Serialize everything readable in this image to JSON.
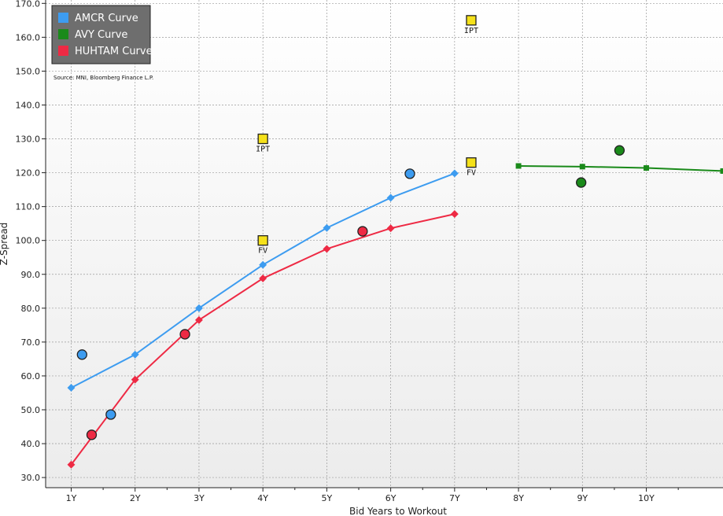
{
  "chart_data": {
    "type": "line",
    "xlabel": "Bid Years to Workout",
    "ylabel": "Z-Spread",
    "source": "Source: MNI, Bloomberg Finance L.P.",
    "xlim": [
      0.6,
      11.2
    ],
    "ylim": [
      27,
      171
    ],
    "x_ticks": [
      1,
      2,
      3,
      4,
      5,
      6,
      7,
      8,
      9,
      10
    ],
    "x_tick_labels": [
      "1Y",
      "2Y",
      "3Y",
      "4Y",
      "5Y",
      "6Y",
      "7Y",
      "8Y",
      "9Y",
      "10Y"
    ],
    "y_ticks": [
      30,
      40,
      50,
      60,
      70,
      80,
      90,
      100,
      110,
      120,
      130,
      140,
      150,
      160,
      170
    ],
    "y_tick_labels": [
      "30.0",
      "40.0",
      "50.0",
      "60.0",
      "70.0",
      "80.0",
      "90.0",
      "100.0",
      "110.0",
      "120.0",
      "130.0",
      "140.0",
      "150.0",
      "160.0",
      "170.0"
    ],
    "grid": true,
    "legend_position": "top-left",
    "series": [
      {
        "name": "AMCR Curve",
        "color": "#3d9cf0",
        "x": [
          1,
          2,
          3,
          4,
          5,
          6,
          7
        ],
        "y": [
          56.5,
          66.3,
          80.0,
          92.8,
          103.7,
          112.6,
          119.8
        ],
        "bonds": {
          "x": [
            1.17,
            1.62,
            6.3
          ],
          "y": [
            66.3,
            48.6,
            119.7
          ]
        }
      },
      {
        "name": "AVY Curve",
        "color": "#1a8a1a",
        "x": [
          8,
          9,
          10,
          11.2
        ],
        "y": [
          122.0,
          121.8,
          121.4,
          120.5
        ],
        "bonds": {
          "x": [
            9.58,
            8.98
          ],
          "y": [
            126.6,
            117.1
          ]
        }
      },
      {
        "name": "HUHTAM Curve",
        "color": "#ee2a44",
        "x": [
          1,
          2,
          3,
          4,
          5,
          6,
          7
        ],
        "y": [
          33.8,
          58.9,
          76.5,
          88.8,
          97.5,
          103.6,
          107.8
        ],
        "bonds": {
          "x": [
            1.32,
            2.78,
            5.56
          ],
          "y": [
            42.6,
            72.3,
            102.7
          ]
        }
      }
    ],
    "annotations": [
      {
        "label": "IPT",
        "x": 4.0,
        "y": 130.0
      },
      {
        "label": "FV",
        "x": 4.0,
        "y": 100.0
      },
      {
        "label": "IPT",
        "x": 7.26,
        "y": 165.0
      },
      {
        "label": "FV",
        "x": 7.26,
        "y": 123.0
      }
    ],
    "annotation_color": "#f5e11a"
  }
}
